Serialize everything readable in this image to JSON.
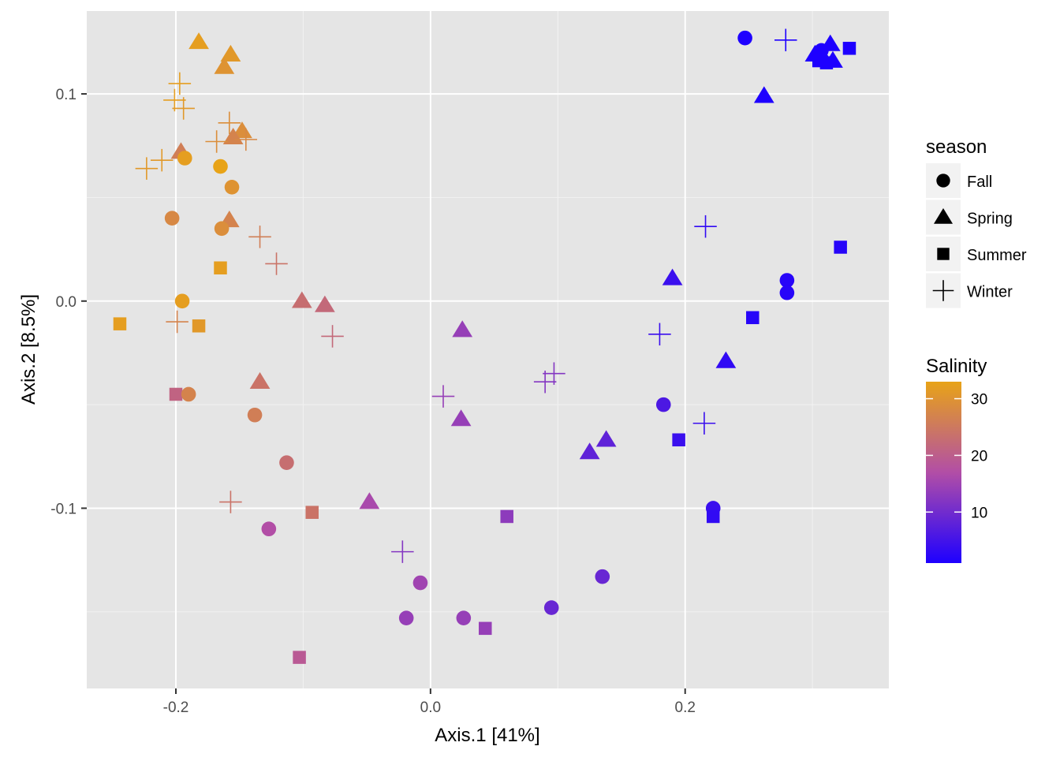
{
  "chart_data": {
    "type": "scatter",
    "xlabel": "Axis.1   [41%]",
    "ylabel": "Axis.2   [8.5%]",
    "xlim": [
      -0.27,
      0.36
    ],
    "ylim": [
      -0.187,
      0.14
    ],
    "x_ticks": [
      -0.2,
      0.0,
      0.2
    ],
    "x_tick_labels": [
      "-0.2",
      "0.0",
      "0.2"
    ],
    "y_ticks": [
      -0.1,
      0.0,
      0.1
    ],
    "y_tick_labels": [
      "-0.1",
      "0.0",
      "0.1"
    ],
    "grid": true,
    "background": "#e5e5e5",
    "legend_position": "right",
    "shape_legend": {
      "title": "season",
      "entries": [
        {
          "label": "Fall",
          "shape": "circle"
        },
        {
          "label": "Spring",
          "shape": "triangle"
        },
        {
          "label": "Summer",
          "shape": "square"
        },
        {
          "label": "Winter",
          "shape": "plus"
        }
      ]
    },
    "color_legend": {
      "title": "Salinity",
      "min": 1,
      "max": 33,
      "ticks": [
        10,
        20,
        30
      ],
      "tick_labels": [
        "10",
        "20",
        "30"
      ],
      "color_low": "#1e00ff",
      "color_mid": "#b24ea6",
      "color_high": "#e8a317"
    },
    "points": [
      {
        "season": "Spring",
        "x": -0.182,
        "y": 0.125,
        "salinity": 32
      },
      {
        "season": "Spring",
        "x": -0.157,
        "y": 0.119,
        "salinity": 31
      },
      {
        "season": "Spring",
        "x": -0.162,
        "y": 0.113,
        "salinity": 30
      },
      {
        "season": "Winter",
        "x": -0.197,
        "y": 0.105,
        "salinity": 32
      },
      {
        "season": "Winter",
        "x": -0.201,
        "y": 0.097,
        "salinity": 32
      },
      {
        "season": "Winter",
        "x": -0.194,
        "y": 0.093,
        "salinity": 31
      },
      {
        "season": "Winter",
        "x": -0.158,
        "y": 0.086,
        "salinity": 29
      },
      {
        "season": "Spring",
        "x": -0.148,
        "y": 0.082,
        "salinity": 29
      },
      {
        "season": "Spring",
        "x": -0.155,
        "y": 0.079,
        "salinity": 27
      },
      {
        "season": "Winter",
        "x": -0.145,
        "y": 0.078,
        "salinity": 28
      },
      {
        "season": "Winter",
        "x": -0.168,
        "y": 0.077,
        "salinity": 29
      },
      {
        "season": "Spring",
        "x": -0.196,
        "y": 0.072,
        "salinity": 26
      },
      {
        "season": "Fall",
        "x": -0.193,
        "y": 0.069,
        "salinity": 32
      },
      {
        "season": "Winter",
        "x": -0.211,
        "y": 0.068,
        "salinity": 31
      },
      {
        "season": "Winter",
        "x": -0.223,
        "y": 0.064,
        "salinity": 31
      },
      {
        "season": "Fall",
        "x": -0.165,
        "y": 0.065,
        "salinity": 33
      },
      {
        "season": "Fall",
        "x": -0.156,
        "y": 0.055,
        "salinity": 30
      },
      {
        "season": "Fall",
        "x": -0.203,
        "y": 0.04,
        "salinity": 28
      },
      {
        "season": "Spring",
        "x": -0.158,
        "y": 0.039,
        "salinity": 27
      },
      {
        "season": "Fall",
        "x": -0.164,
        "y": 0.035,
        "salinity": 29
      },
      {
        "season": "Winter",
        "x": -0.134,
        "y": 0.031,
        "salinity": 26
      },
      {
        "season": "Winter",
        "x": -0.121,
        "y": 0.018,
        "salinity": 24
      },
      {
        "season": "Summer",
        "x": -0.165,
        "y": 0.016,
        "salinity": 32
      },
      {
        "season": "Fall",
        "x": -0.195,
        "y": 0.0,
        "salinity": 32
      },
      {
        "season": "Spring",
        "x": -0.101,
        "y": 0.0,
        "salinity": 23
      },
      {
        "season": "Spring",
        "x": -0.083,
        "y": -0.002,
        "salinity": 22
      },
      {
        "season": "Summer",
        "x": -0.244,
        "y": -0.011,
        "salinity": 32
      },
      {
        "season": "Summer",
        "x": -0.182,
        "y": -0.012,
        "salinity": 31
      },
      {
        "season": "Winter",
        "x": -0.199,
        "y": -0.01,
        "salinity": 27
      },
      {
        "season": "Winter",
        "x": -0.077,
        "y": -0.017,
        "salinity": 22
      },
      {
        "season": "Spring",
        "x": -0.134,
        "y": -0.039,
        "salinity": 24
      },
      {
        "season": "Summer",
        "x": -0.2,
        "y": -0.045,
        "salinity": 21
      },
      {
        "season": "Fall",
        "x": -0.19,
        "y": -0.045,
        "salinity": 27
      },
      {
        "season": "Fall",
        "x": -0.138,
        "y": -0.055,
        "salinity": 26
      },
      {
        "season": "Fall",
        "x": -0.113,
        "y": -0.078,
        "salinity": 23
      },
      {
        "season": "Winter",
        "x": -0.157,
        "y": -0.097,
        "salinity": 24
      },
      {
        "season": "Summer",
        "x": -0.093,
        "y": -0.102,
        "salinity": 24
      },
      {
        "season": "Fall",
        "x": -0.127,
        "y": -0.11,
        "salinity": 17
      },
      {
        "season": "Summer",
        "x": -0.103,
        "y": -0.172,
        "salinity": 19
      },
      {
        "season": "Spring",
        "x": -0.048,
        "y": -0.097,
        "salinity": 16
      },
      {
        "season": "Winter",
        "x": -0.022,
        "y": -0.121,
        "salinity": 12
      },
      {
        "season": "Fall",
        "x": -0.008,
        "y": -0.136,
        "salinity": 15
      },
      {
        "season": "Fall",
        "x": -0.019,
        "y": -0.153,
        "salinity": 14
      },
      {
        "season": "Fall",
        "x": 0.026,
        "y": -0.153,
        "salinity": 14
      },
      {
        "season": "Summer",
        "x": 0.043,
        "y": -0.158,
        "salinity": 14
      },
      {
        "season": "Summer",
        "x": 0.06,
        "y": -0.104,
        "salinity": 13
      },
      {
        "season": "Spring",
        "x": 0.025,
        "y": -0.014,
        "salinity": 14
      },
      {
        "season": "Spring",
        "x": 0.024,
        "y": -0.057,
        "salinity": 14
      },
      {
        "season": "Winter",
        "x": 0.01,
        "y": -0.046,
        "salinity": 14
      },
      {
        "season": "Winter",
        "x": 0.09,
        "y": -0.039,
        "salinity": 12
      },
      {
        "season": "Winter",
        "x": 0.097,
        "y": -0.035,
        "salinity": 12
      },
      {
        "season": "Fall",
        "x": 0.095,
        "y": -0.148,
        "salinity": 9
      },
      {
        "season": "Fall",
        "x": 0.135,
        "y": -0.133,
        "salinity": 9
      },
      {
        "season": "Spring",
        "x": 0.125,
        "y": -0.073,
        "salinity": 8
      },
      {
        "season": "Spring",
        "x": 0.138,
        "y": -0.067,
        "salinity": 8
      },
      {
        "season": "Fall",
        "x": 0.183,
        "y": -0.05,
        "salinity": 6
      },
      {
        "season": "Summer",
        "x": 0.195,
        "y": -0.067,
        "salinity": 4
      },
      {
        "season": "Winter",
        "x": 0.18,
        "y": -0.016,
        "salinity": 4
      },
      {
        "season": "Winter",
        "x": 0.215,
        "y": -0.059,
        "salinity": 4
      },
      {
        "season": "Fall",
        "x": 0.222,
        "y": -0.1,
        "salinity": 4
      },
      {
        "season": "Summer",
        "x": 0.222,
        "y": -0.104,
        "salinity": 3
      },
      {
        "season": "Spring",
        "x": 0.19,
        "y": 0.011,
        "salinity": 4
      },
      {
        "season": "Spring",
        "x": 0.232,
        "y": -0.029,
        "salinity": 3
      },
      {
        "season": "Winter",
        "x": 0.216,
        "y": 0.036,
        "salinity": 3
      },
      {
        "season": "Summer",
        "x": 0.253,
        "y": -0.008,
        "salinity": 2
      },
      {
        "season": "Fall",
        "x": 0.28,
        "y": 0.01,
        "salinity": 2
      },
      {
        "season": "Fall",
        "x": 0.28,
        "y": 0.004,
        "salinity": 2
      },
      {
        "season": "Summer",
        "x": 0.322,
        "y": 0.026,
        "salinity": 2
      },
      {
        "season": "Fall",
        "x": 0.247,
        "y": 0.127,
        "salinity": 1
      },
      {
        "season": "Winter",
        "x": 0.279,
        "y": 0.126,
        "salinity": 1
      },
      {
        "season": "Spring",
        "x": 0.262,
        "y": 0.099,
        "salinity": 1
      },
      {
        "season": "Spring",
        "x": 0.302,
        "y": 0.119,
        "salinity": 1
      },
      {
        "season": "Spring",
        "x": 0.309,
        "y": 0.117,
        "salinity": 1
      },
      {
        "season": "Spring",
        "x": 0.314,
        "y": 0.124,
        "salinity": 1
      },
      {
        "season": "Spring",
        "x": 0.316,
        "y": 0.116,
        "salinity": 1
      },
      {
        "season": "Fall",
        "x": 0.307,
        "y": 0.121,
        "salinity": 1
      },
      {
        "season": "Summer",
        "x": 0.305,
        "y": 0.116,
        "salinity": 1
      },
      {
        "season": "Summer",
        "x": 0.311,
        "y": 0.115,
        "salinity": 1
      },
      {
        "season": "Summer",
        "x": 0.329,
        "y": 0.122,
        "salinity": 1
      }
    ]
  }
}
